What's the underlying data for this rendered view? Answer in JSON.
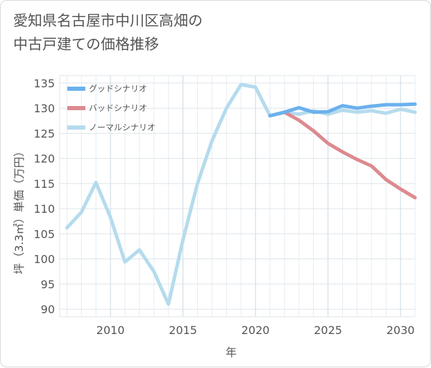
{
  "chart_data": {
    "type": "line",
    "title": "愛知県名古屋市中川区高畑の\n中古戸建ての価格推移",
    "xlabel": "年",
    "ylabel": "坪（3.3㎡）単価（万円）",
    "xlim": [
      2006.5,
      2031
    ],
    "ylim": [
      88.5,
      136.5
    ],
    "xticks": [
      2010,
      2015,
      2020,
      2025,
      2030
    ],
    "yticks": [
      90,
      95,
      100,
      105,
      110,
      115,
      120,
      125,
      130,
      135
    ],
    "legend_position": "top-left",
    "series": [
      {
        "name": "グッドシナリオ",
        "color": "#6ab1ed",
        "x": [
          2021,
          2022,
          2023,
          2024,
          2025,
          2026,
          2027,
          2028,
          2029,
          2030,
          2031
        ],
        "values": [
          128.5,
          129.2,
          130.1,
          129.2,
          129.3,
          130.5,
          130.0,
          130.4,
          130.7,
          130.7,
          130.8
        ]
      },
      {
        "name": "バッドシナリオ",
        "color": "#dc8a8f",
        "x": [
          2021,
          2022,
          2023,
          2024,
          2025,
          2026,
          2027,
          2028,
          2029,
          2030,
          2031
        ],
        "values": [
          128.5,
          129.2,
          127.6,
          125.5,
          123.0,
          121.3,
          119.8,
          118.5,
          115.8,
          113.9,
          112.2
        ]
      },
      {
        "name": "ノーマルシナリオ",
        "color": "#b5dbed",
        "x": [
          2007,
          2008,
          2009,
          2010,
          2011,
          2012,
          2013,
          2014,
          2015,
          2016,
          2017,
          2018,
          2019,
          2020,
          2021,
          2022,
          2023,
          2024,
          2025,
          2026,
          2027,
          2028,
          2029,
          2030,
          2031
        ],
        "values": [
          106.2,
          109.3,
          115.2,
          108.3,
          99.4,
          101.8,
          97.5,
          91.0,
          103.8,
          115.0,
          123.5,
          130.0,
          134.7,
          134.2,
          128.5,
          129.2,
          128.8,
          129.5,
          128.8,
          129.6,
          129.2,
          129.5,
          129.0,
          129.8,
          129.2
        ]
      }
    ]
  }
}
